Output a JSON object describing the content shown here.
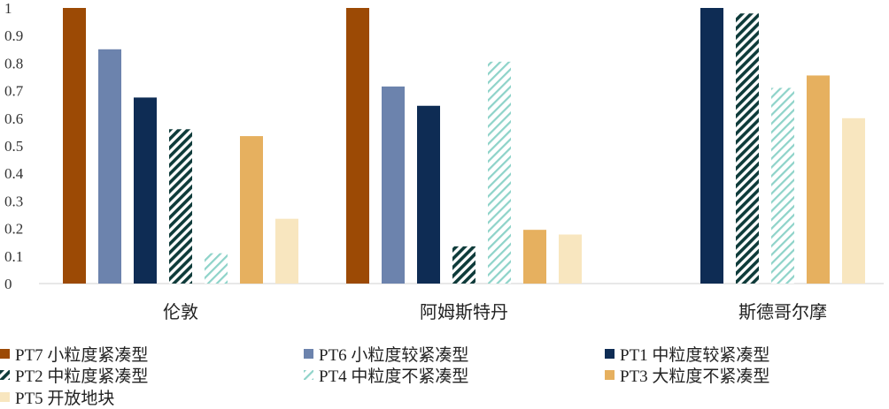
{
  "chart_data": {
    "type": "bar",
    "title": "",
    "xlabel": "",
    "ylabel": "",
    "ylim": [
      0,
      1
    ],
    "yticks": [
      "0",
      "0.1",
      "0.2",
      "0.3",
      "0.4",
      "0.5",
      "0.6",
      "0.7",
      "0.8",
      "0.9",
      "1"
    ],
    "grid": false,
    "legend_position": "bottom",
    "categories": [
      "伦敦",
      "阿姆斯特丹",
      "斯德哥尔摩"
    ],
    "series": [
      {
        "name": "PT7 小粒度紧凑型",
        "color": "#9C4A05",
        "pattern": "solid",
        "values": [
          1.0,
          1.0,
          null
        ]
      },
      {
        "name": "PT6 小粒度较紧凑型",
        "color": "#6C83AD",
        "pattern": "solid",
        "values": [
          0.85,
          0.715,
          null
        ]
      },
      {
        "name": "PT1 中粒度较紧凑型",
        "color": "#0E2C54",
        "pattern": "solid",
        "values": [
          0.675,
          0.645,
          1.0
        ]
      },
      {
        "name": "PT2 中粒度紧凑型",
        "color": "#0C6A5A",
        "pattern": "dense-hatch",
        "values": [
          0.56,
          0.135,
          0.98
        ]
      },
      {
        "name": "PT4 中粒度不紧凑型",
        "color": "#8ED3C9",
        "pattern": "light-hatch",
        "values": [
          0.11,
          0.805,
          0.71
        ]
      },
      {
        "name": "PT3 大粒度不紧凑型",
        "color": "#E6B05F",
        "pattern": "solid",
        "values": [
          0.535,
          0.195,
          0.755
        ]
      },
      {
        "name": "PT5 开放地块",
        "color": "#F8E6BF",
        "pattern": "solid",
        "values": [
          0.235,
          0.178,
          0.6
        ]
      }
    ]
  }
}
